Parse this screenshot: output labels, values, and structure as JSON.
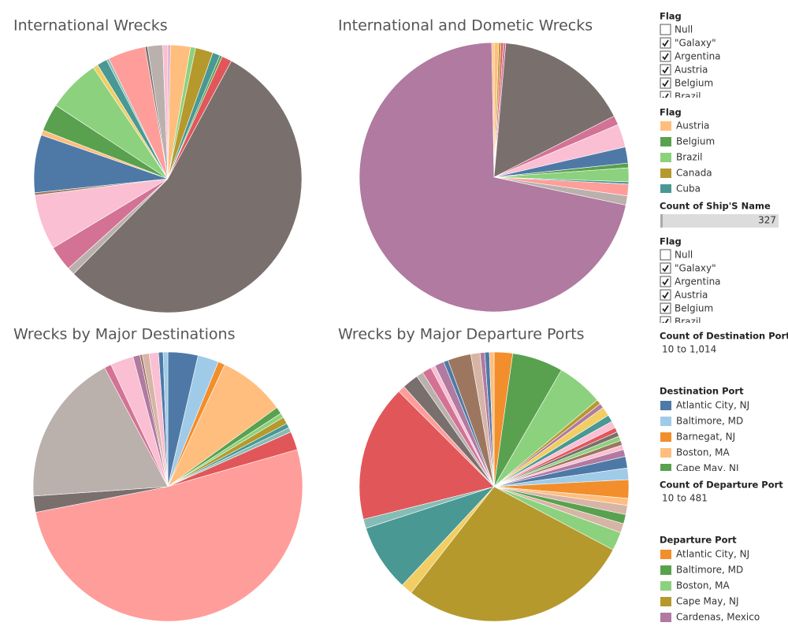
{
  "chart_data": [
    {
      "type": "pie",
      "title": "International Wrecks",
      "values": [
        1,
        8,
        2,
        7,
        3,
        1,
        4,
        180,
        3,
        10,
        22,
        1,
        23,
        2,
        11,
        21,
        2,
        4,
        1,
        15,
        1,
        6,
        2
      ],
      "colors": [
        "#d4a6c8",
        "#ffbe7d",
        "#8cd17d",
        "#b6992d",
        "#499894",
        "#59a14f",
        "#e15759",
        "#79706e",
        "#bab0ac",
        "#d37295",
        "#fabfd2",
        "#9d7660",
        "#4e79a7",
        "#ffbe7d",
        "#59a14f",
        "#8cd17d",
        "#f1ce63",
        "#499894",
        "#86bcb6",
        "#ff9d9a",
        "#79706e",
        "#bab0ac",
        "#fabfd2"
      ]
    },
    {
      "type": "pie",
      "title": "International and Dometic Wrecks",
      "values": [
        2,
        1,
        1,
        1,
        58,
        4,
        10,
        7,
        2,
        6,
        1,
        5,
        4,
        257,
        1
      ],
      "colors": [
        "#ffbe7d",
        "#b6992d",
        "#e15759",
        "#d37295",
        "#79706e",
        "#d37295",
        "#fabfd2",
        "#4e79a7",
        "#59a14f",
        "#8cd17d",
        "#499894",
        "#ff9d9a",
        "#bab0ac",
        "#b07aa1",
        "#ffbe7d"
      ]
    },
    {
      "type": "pie",
      "title": "Wrecks by Major Destinations",
      "values": [
        13,
        9,
        3,
        29,
        3,
        2,
        3,
        2,
        2,
        8,
        185,
        7,
        66,
        3,
        10,
        3,
        1,
        3,
        4,
        2,
        2
      ],
      "colors": [
        "#4e79a7",
        "#a0cbe8",
        "#f28e2b",
        "#ffbe7d",
        "#59a14f",
        "#8cd17d",
        "#b6992d",
        "#499894",
        "#86bcb6",
        "#e15759",
        "#ff9d9a",
        "#79706e",
        "#bab0ac",
        "#d37295",
        "#fabfd2",
        "#b07aa1",
        "#9d7660",
        "#d7b5a6",
        "#fabfd2",
        "#4e79a7",
        "#a0cbe8"
      ]
    },
    {
      "type": "pie",
      "title": "Wrecks by Major Departure Ports",
      "values": [
        8,
        22,
        20,
        2,
        2,
        4,
        3,
        3,
        2,
        2,
        2,
        2,
        2,
        3,
        5,
        5,
        8,
        3,
        4,
        4,
        4,
        8,
        100,
        5,
        29,
        4,
        59,
        3,
        7,
        3,
        4,
        2,
        4,
        2,
        10,
        4,
        2,
        2,
        2
      ],
      "colors": [
        "#f28e2b",
        "#59a14f",
        "#8cd17d",
        "#b6992d",
        "#b07aa1",
        "#f1ce63",
        "#499894",
        "#fabfd2",
        "#e15759",
        "#79706e",
        "#8cd17d",
        "#9d7660",
        "#fabfd2",
        "#b07aa1",
        "#4e79a7",
        "#a0cbe8",
        "#f28e2b",
        "#ffbe7d",
        "#d7b5a6",
        "#59a14f",
        "#d7b5a6",
        "#8cd17d",
        "#b6992d",
        "#f1ce63",
        "#499894",
        "#86bcb6",
        "#e15759",
        "#ff9d9a",
        "#79706e",
        "#bab0ac",
        "#d37295",
        "#fabfd2",
        "#b07aa1",
        "#4e79a7",
        "#9d7660",
        "#d7b5a6",
        "#b07aa1",
        "#4e79a7",
        "#ffbe7d"
      ]
    }
  ],
  "sidebar": [
    {
      "kind": "filter",
      "title": "Flag",
      "items": [
        {
          "label": "Null",
          "checked": false
        },
        {
          "label": "\"Galaxy\"",
          "checked": true
        },
        {
          "label": "Argentina",
          "checked": true
        },
        {
          "label": "Austria",
          "checked": true
        },
        {
          "label": "Belgium",
          "checked": true
        },
        {
          "label": "Brazil",
          "checked": true
        }
      ]
    },
    {
      "kind": "legend",
      "title": "Flag",
      "items": [
        {
          "label": "Austria",
          "color": "#ffbe7d"
        },
        {
          "label": "Belgium",
          "color": "#59a14f"
        },
        {
          "label": "Brazil",
          "color": "#8cd17d"
        },
        {
          "label": "Canada",
          "color": "#b6992d"
        },
        {
          "label": "Cuba",
          "color": "#499894"
        }
      ]
    },
    {
      "kind": "slider",
      "title": "Count of Ship'S Name",
      "value": 327
    },
    {
      "kind": "filter",
      "title": "Flag",
      "items": [
        {
          "label": "Null",
          "checked": false
        },
        {
          "label": "\"Galaxy\"",
          "checked": true
        },
        {
          "label": "Argentina",
          "checked": true
        },
        {
          "label": "Austria",
          "checked": true
        },
        {
          "label": "Belgium",
          "checked": true
        },
        {
          "label": "Brazil",
          "checked": true
        }
      ]
    },
    {
      "kind": "range",
      "title": "Count of Destination Port",
      "text": "10 to 1,014"
    },
    {
      "kind": "legend",
      "title": "Destination Port",
      "items": [
        {
          "label": "Atlantic City, NJ",
          "color": "#4e79a7"
        },
        {
          "label": "Baltimore, MD",
          "color": "#a0cbe8"
        },
        {
          "label": "Barnegat, NJ",
          "color": "#f28e2b"
        },
        {
          "label": "Boston, MA",
          "color": "#ffbe7d"
        },
        {
          "label": "Cape May, NJ",
          "color": "#59a14f"
        }
      ]
    },
    {
      "kind": "range",
      "title": "Count of Departure Port",
      "text": "10 to 481"
    },
    {
      "kind": "legend",
      "title": "Departure Port",
      "items": [
        {
          "label": "Atlantic City, NJ",
          "color": "#f28e2b"
        },
        {
          "label": "Baltimore, MD",
          "color": "#59a14f"
        },
        {
          "label": "Boston, MA",
          "color": "#8cd17d"
        },
        {
          "label": "Cape May, NJ",
          "color": "#b6992d"
        },
        {
          "label": "Cardenas, Mexico",
          "color": "#b07aa1"
        }
      ]
    }
  ]
}
